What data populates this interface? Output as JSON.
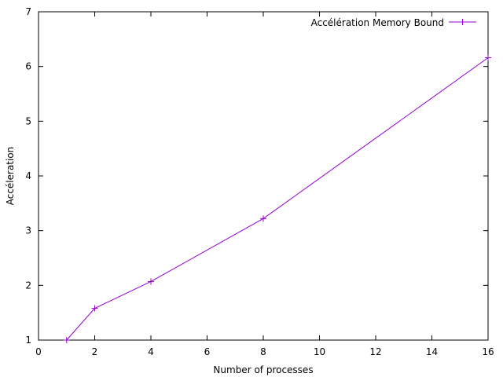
{
  "chart_data": {
    "type": "line",
    "title": "",
    "xlabel": "Number of processes",
    "ylabel": "Accéleration",
    "xlim": [
      0,
      16
    ],
    "ylim": [
      1,
      7
    ],
    "xticks": [
      0,
      2,
      4,
      6,
      8,
      10,
      12,
      14,
      16
    ],
    "yticks": [
      1,
      2,
      3,
      4,
      5,
      6,
      7
    ],
    "grid": false,
    "legend_position": "top-right",
    "series": [
      {
        "name": "Accélération Memory Bound",
        "color": "#9400d3",
        "marker": "plus",
        "x": [
          1,
          2,
          4,
          8,
          16
        ],
        "y": [
          1.0,
          1.58,
          2.07,
          3.22,
          6.16
        ]
      }
    ]
  }
}
